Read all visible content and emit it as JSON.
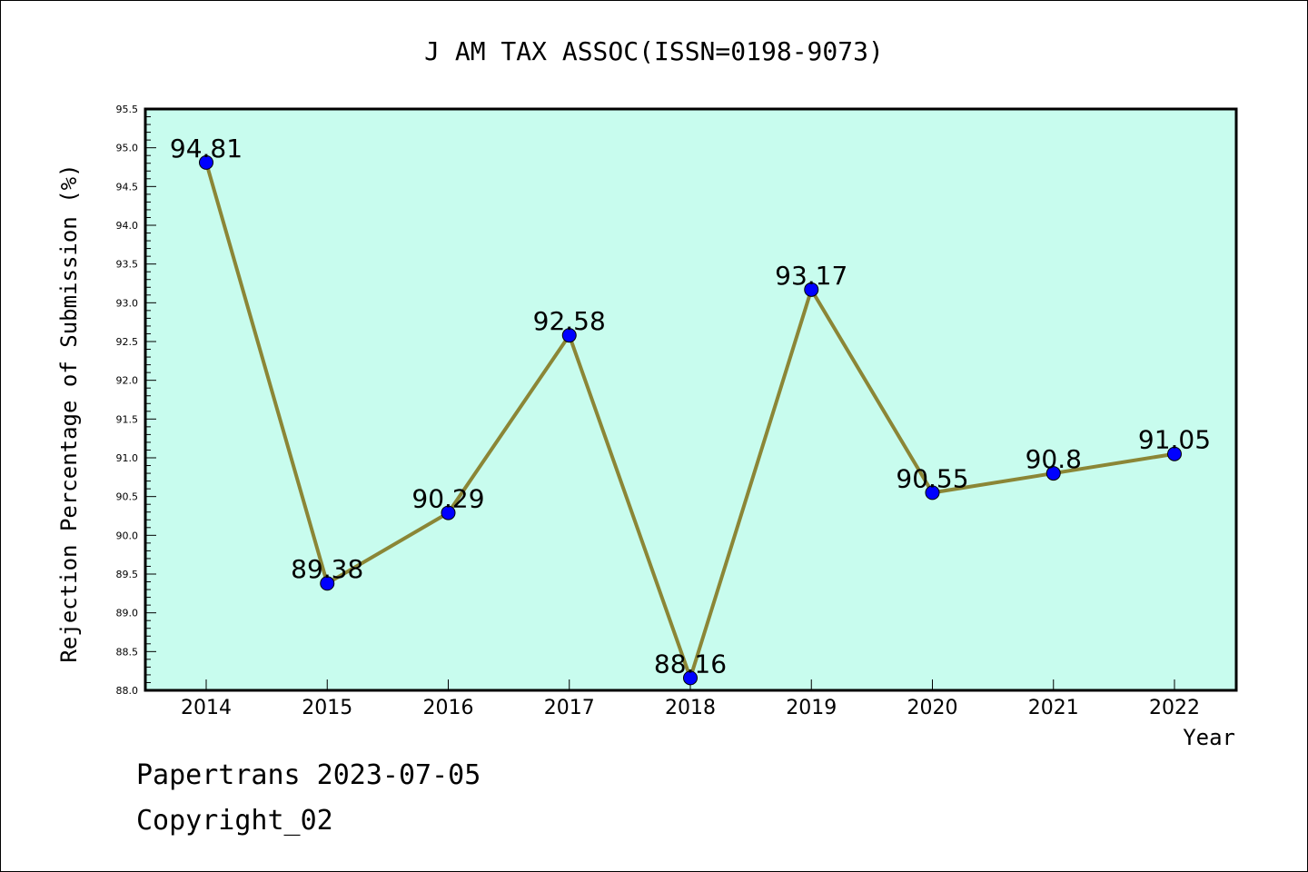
{
  "chart_data": {
    "type": "line",
    "title": "J AM TAX ASSOC(ISSN=0198-9073)",
    "xlabel": "Year",
    "ylabel": "Rejection Percentage of Submission (%)",
    "categories": [
      "2014",
      "2015",
      "2016",
      "2017",
      "2018",
      "2019",
      "2020",
      "2021",
      "2022"
    ],
    "values": [
      94.81,
      89.38,
      90.29,
      92.58,
      88.16,
      93.17,
      90.55,
      90.8,
      91.05
    ],
    "data_labels": [
      "94.81",
      "89.38",
      "90.29",
      "92.58",
      "88.16",
      "93.17",
      "90.55",
      "90.8",
      "91.05"
    ],
    "ylim": [
      88.0,
      95.5
    ],
    "yticks": [
      "88.0",
      "88.5",
      "89.0",
      "89.5",
      "90.0",
      "90.5",
      "91.0",
      "91.5",
      "92.0",
      "92.5",
      "93.0",
      "93.5",
      "94.0",
      "94.5",
      "95.0",
      "95.5"
    ],
    "grid": false,
    "colors": {
      "plot_background": "#c8fcee",
      "line": "#8b8636",
      "marker": "#0000ff"
    }
  },
  "footer": {
    "line1": "Papertrans 2023-07-05",
    "line2": "Copyright_02"
  }
}
